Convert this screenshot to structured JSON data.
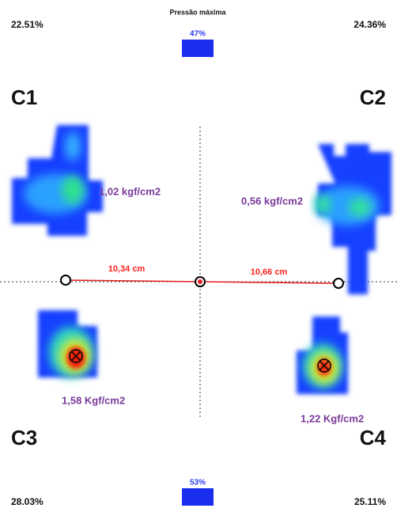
{
  "header": {
    "title": "Pressão máxima",
    "top_percent": "47%",
    "bottom_percent": "53%"
  },
  "quadrants": [
    {
      "label": "C1",
      "percent": "22.51%",
      "pressure": "1,02 kgf/cm2"
    },
    {
      "label": "C2",
      "percent": "24.36%",
      "pressure": "0,56 kgf/cm2"
    },
    {
      "label": "C3",
      "percent": "28.03%",
      "pressure": "1,58 Kgf/cm2"
    },
    {
      "label": "C4",
      "percent": "25.11%",
      "pressure": "1,22 Kgf/cm2"
    }
  ],
  "distances": {
    "left": "10,34 cm",
    "right": "10,66 cm"
  }
}
